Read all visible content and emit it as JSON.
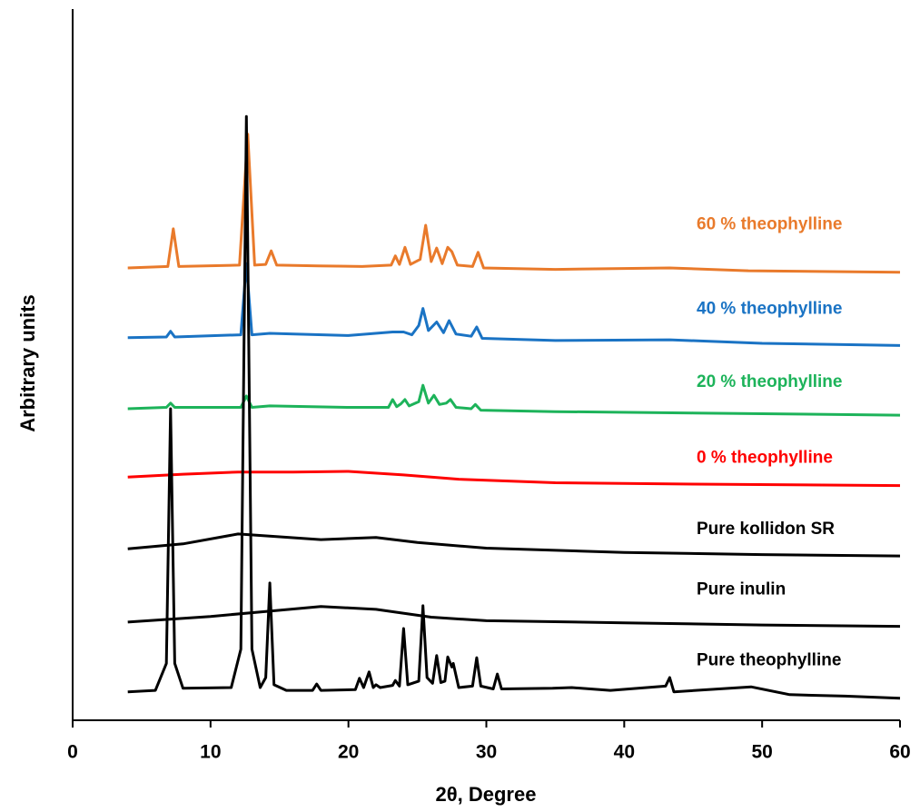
{
  "chart_data": {
    "type": "line",
    "xlabel": "2θ, Degree",
    "ylabel": "Arbitrary units",
    "xlim": [
      0,
      60
    ],
    "xticks": [
      0,
      10,
      20,
      30,
      40,
      50,
      60
    ],
    "ylim": [
      0,
      100
    ],
    "series": [
      {
        "name": "60 % theophylline",
        "color": "#e97a2b",
        "x": [
          4,
          6.9,
          7.3,
          7.7,
          12.1,
          12.7,
          13.2,
          14.0,
          14.4,
          14.8,
          17.8,
          21,
          23.1,
          23.4,
          23.7,
          24.1,
          24.5,
          25.2,
          25.6,
          26.0,
          26.4,
          26.8,
          27.2,
          27.5,
          27.9,
          29.0,
          29.4,
          29.8,
          35,
          43.3,
          49,
          60
        ],
        "values": [
          63.6,
          63.8,
          69.1,
          63.8,
          64.0,
          82.4,
          64.0,
          64.1,
          66.0,
          64.0,
          63.9,
          63.8,
          64.0,
          65.3,
          64.1,
          66.5,
          64.1,
          64.8,
          69.6,
          64.5,
          66.4,
          64.2,
          66.5,
          65.9,
          64.0,
          63.8,
          65.8,
          63.6,
          63.4,
          63.6,
          63.2,
          63.0
        ]
      },
      {
        "name": "40 % theophylline",
        "color": "#1a73c4",
        "x": [
          4,
          6.8,
          7.1,
          7.4,
          12.2,
          12.6,
          13,
          14.3,
          20,
          23.2,
          24.0,
          24.6,
          25.1,
          25.4,
          25.8,
          26.4,
          26.9,
          27.3,
          27.8,
          28.9,
          29.3,
          29.7,
          35,
          43.3,
          50,
          60
        ],
        "values": [
          53.8,
          53.9,
          54.7,
          53.9,
          54.2,
          64.2,
          54.2,
          54.4,
          54.1,
          54.6,
          54.6,
          54.2,
          55.5,
          57.9,
          54.8,
          56.0,
          54.5,
          56.2,
          54.3,
          54.0,
          55.3,
          53.7,
          53.4,
          53.5,
          53.0,
          52.7
        ]
      },
      {
        "name": "20 % theophylline",
        "color": "#1db35a",
        "x": [
          4,
          6.8,
          7.1,
          7.4,
          12.2,
          12.6,
          13,
          14.3,
          20,
          22.9,
          23.2,
          23.5,
          23.8,
          24.1,
          24.4,
          25.1,
          25.4,
          25.8,
          26.2,
          26.6,
          27.1,
          27.4,
          27.8,
          28.9,
          29.2,
          29.6,
          35,
          45,
          60
        ],
        "values": [
          43.8,
          44.0,
          44.6,
          44.0,
          44.0,
          45.6,
          44.0,
          44.2,
          44.0,
          44.0,
          45.1,
          44.1,
          44.5,
          45.1,
          44.2,
          44.8,
          47.1,
          44.6,
          45.7,
          44.4,
          44.6,
          45.1,
          44.0,
          43.8,
          44.4,
          43.6,
          43.4,
          43.2,
          42.9
        ]
      },
      {
        "name": "0 % theophylline",
        "color": "#ff0000",
        "x": [
          4,
          8,
          12,
          16,
          20,
          24,
          28,
          35,
          45,
          60
        ],
        "values": [
          34.2,
          34.6,
          34.9,
          34.9,
          35.0,
          34.5,
          33.9,
          33.4,
          33.2,
          33.0
        ]
      },
      {
        "name": "Pure kollidon SR",
        "color": "#000000",
        "x": [
          4,
          8,
          12,
          15,
          18,
          22,
          25,
          30,
          40,
          50,
          60
        ],
        "values": [
          24.1,
          24.8,
          26.2,
          25.8,
          25.4,
          25.7,
          25.0,
          24.2,
          23.6,
          23.3,
          23.1
        ]
      },
      {
        "name": "Pure inulin",
        "color": "#000000",
        "x": [
          4,
          10,
          14,
          18,
          22,
          26,
          30,
          40,
          50,
          60
        ],
        "values": [
          13.8,
          14.6,
          15.3,
          16.0,
          15.6,
          14.5,
          14.0,
          13.7,
          13.4,
          13.2
        ]
      },
      {
        "name": "Pure theophylline",
        "color": "#000000",
        "x": [
          4,
          6,
          6.8,
          7.1,
          7.4,
          8,
          11.5,
          12.2,
          12.6,
          13,
          13.6,
          14.0,
          14.3,
          14.6,
          15.5,
          17.4,
          17.7,
          18,
          20.5,
          20.8,
          21.1,
          21.5,
          21.8,
          22,
          22.3,
          23.2,
          23.4,
          23.7,
          24.0,
          24.3,
          25.1,
          25.4,
          25.7,
          26.1,
          26.4,
          26.7,
          27.0,
          27.2,
          27.5,
          27.6,
          28,
          29.0,
          29.3,
          29.6,
          30.5,
          30.8,
          31.1,
          34.8,
          36.2,
          39,
          43,
          43.3,
          43.6,
          49.2,
          52,
          56,
          60
        ],
        "values": [
          4.0,
          4.2,
          8,
          43.8,
          8,
          4.5,
          4.6,
          10,
          84.9,
          10,
          4.6,
          6,
          19.3,
          5,
          4.2,
          4.2,
          5.1,
          4.2,
          4.3,
          5.9,
          4.6,
          6.8,
          4.6,
          5,
          4.6,
          4.9,
          5.6,
          4.8,
          12.9,
          5,
          5.5,
          16.1,
          6,
          5.2,
          9.1,
          5.3,
          5.5,
          8.9,
          7.5,
          8,
          4.6,
          4.8,
          8.8,
          4.8,
          4.4,
          6.5,
          4.4,
          4.5,
          4.6,
          4.2,
          4.8,
          6.0,
          4.0,
          4.7,
          3.6,
          3.4,
          3.1
        ]
      }
    ]
  }
}
